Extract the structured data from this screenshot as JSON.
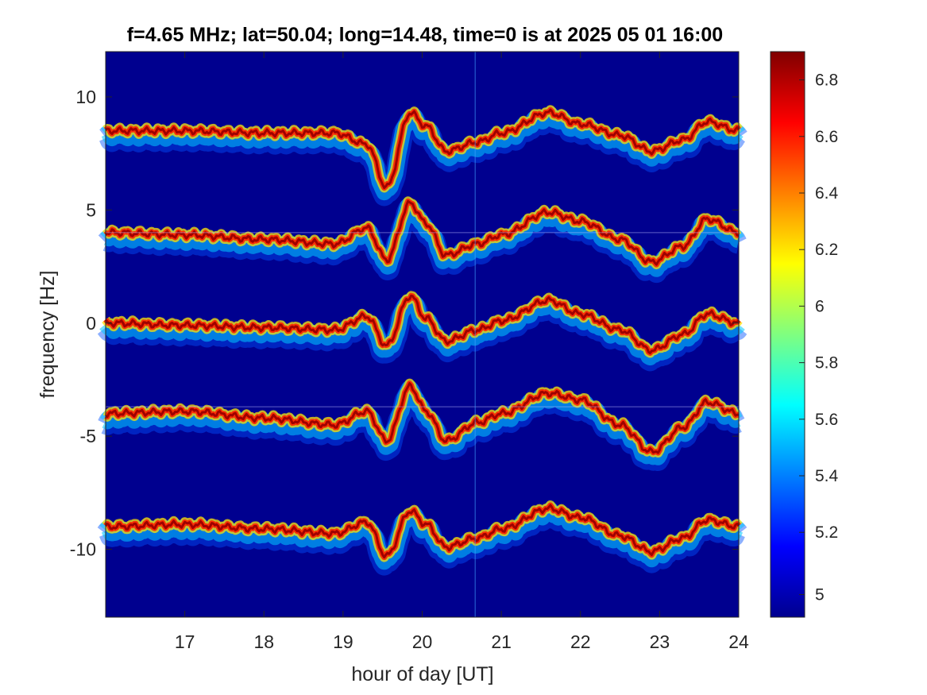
{
  "chart_data": {
    "type": "heatmap",
    "title": "f=4.65 MHz;  lat=50.04; long=14.48, time=0 is at 2025 05 01 16:00",
    "xlabel": "hour of day [UT]",
    "ylabel": "frequency [Hz]",
    "xlim": [
      16,
      24
    ],
    "ylim": [
      -13,
      12
    ],
    "xticks": [
      17,
      18,
      19,
      20,
      21,
      22,
      23,
      24
    ],
    "xtick_labels": [
      "17",
      "18",
      "19",
      "20",
      "21",
      "22",
      "23",
      "24"
    ],
    "yticks": [
      10,
      5,
      0,
      -5,
      -10
    ],
    "ytick_labels": [
      "10",
      "5",
      "0",
      "-5",
      "-10"
    ],
    "colormap": "jet",
    "background_color": "#00008f",
    "colorbar": {
      "range": [
        4.9,
        6.9
      ],
      "ticks": [
        4.98,
        5.2,
        5.4,
        5.6,
        5.8,
        6.0,
        6.2,
        6.4,
        6.6,
        6.8
      ],
      "tick_labels": [
        "5",
        "5.2",
        "5.4",
        "5.6",
        "5.8",
        "6",
        "6.2",
        "6.4",
        "6.6",
        "6.8"
      ]
    },
    "traces": [
      {
        "base": 8.5,
        "deviation": [
          [
            16,
            0
          ],
          [
            17,
            0
          ],
          [
            18,
            -0.1
          ],
          [
            18.9,
            -0.1
          ],
          [
            19.3,
            -0.6
          ],
          [
            19.55,
            -2.5
          ],
          [
            19.85,
            0.8
          ],
          [
            20.05,
            0.2
          ],
          [
            20.3,
            -0.9
          ],
          [
            20.7,
            -0.5
          ],
          [
            21.0,
            -0.1
          ],
          [
            21.6,
            0.8
          ],
          [
            22.0,
            0.3
          ],
          [
            22.5,
            -0.2
          ],
          [
            22.9,
            -0.9
          ],
          [
            23.3,
            -0.4
          ],
          [
            23.6,
            0.4
          ],
          [
            24,
            0
          ]
        ]
      },
      {
        "base": 4.0,
        "deviation": [
          [
            16,
            0
          ],
          [
            17,
            -0.1
          ],
          [
            18,
            -0.3
          ],
          [
            18.9,
            -0.5
          ],
          [
            19.3,
            0.2
          ],
          [
            19.55,
            -1.2
          ],
          [
            19.85,
            1.3
          ],
          [
            20.05,
            0.4
          ],
          [
            20.3,
            -1.0
          ],
          [
            20.7,
            -0.5
          ],
          [
            21.0,
            -0.1
          ],
          [
            21.6,
            0.9
          ],
          [
            22.0,
            0.5
          ],
          [
            22.5,
            -0.3
          ],
          [
            22.9,
            -1.3
          ],
          [
            23.3,
            -0.6
          ],
          [
            23.6,
            0.6
          ],
          [
            24,
            0
          ]
        ]
      },
      {
        "base": 0.0,
        "deviation": [
          [
            16,
            0
          ],
          [
            17,
            -0.1
          ],
          [
            18,
            -0.2
          ],
          [
            18.9,
            -0.3
          ],
          [
            19.3,
            0.3
          ],
          [
            19.55,
            -1.0
          ],
          [
            19.85,
            1.2
          ],
          [
            20.05,
            0.2
          ],
          [
            20.3,
            -0.8
          ],
          [
            20.7,
            -0.3
          ],
          [
            21.0,
            0.1
          ],
          [
            21.6,
            1.0
          ],
          [
            22.0,
            0.4
          ],
          [
            22.5,
            -0.3
          ],
          [
            22.9,
            -1.2
          ],
          [
            23.3,
            -0.5
          ],
          [
            23.6,
            0.4
          ],
          [
            24,
            0
          ]
        ]
      },
      {
        "base": -4.0,
        "deviation": [
          [
            16,
            0
          ],
          [
            17,
            0.1
          ],
          [
            18,
            -0.2
          ],
          [
            18.9,
            -0.5
          ],
          [
            19.3,
            0.1
          ],
          [
            19.55,
            -1.2
          ],
          [
            19.85,
            1.2
          ],
          [
            20.05,
            0.1
          ],
          [
            20.3,
            -1.2
          ],
          [
            20.7,
            -0.4
          ],
          [
            21.0,
            0.0
          ],
          [
            21.6,
            0.9
          ],
          [
            22.0,
            0.6
          ],
          [
            22.5,
            -0.5
          ],
          [
            22.9,
            -1.7
          ],
          [
            23.3,
            -0.6
          ],
          [
            23.6,
            0.5
          ],
          [
            24,
            0
          ]
        ]
      },
      {
        "base": -9.0,
        "deviation": [
          [
            16,
            0
          ],
          [
            17,
            0.1
          ],
          [
            18,
            -0.1
          ],
          [
            18.9,
            -0.3
          ],
          [
            19.3,
            0.2
          ],
          [
            19.55,
            -1.3
          ],
          [
            19.85,
            0.7
          ],
          [
            20.05,
            0.1
          ],
          [
            20.3,
            -0.9
          ],
          [
            20.7,
            -0.5
          ],
          [
            21.0,
            -0.1
          ],
          [
            21.6,
            0.8
          ],
          [
            22.0,
            0.4
          ],
          [
            22.5,
            -0.4
          ],
          [
            22.9,
            -1.1
          ],
          [
            23.3,
            -0.5
          ],
          [
            23.6,
            0.3
          ],
          [
            24,
            0
          ]
        ]
      }
    ],
    "faint_horizontal_lines": [
      4.0,
      -3.7
    ],
    "faint_vertical_line_x": 20.67
  }
}
